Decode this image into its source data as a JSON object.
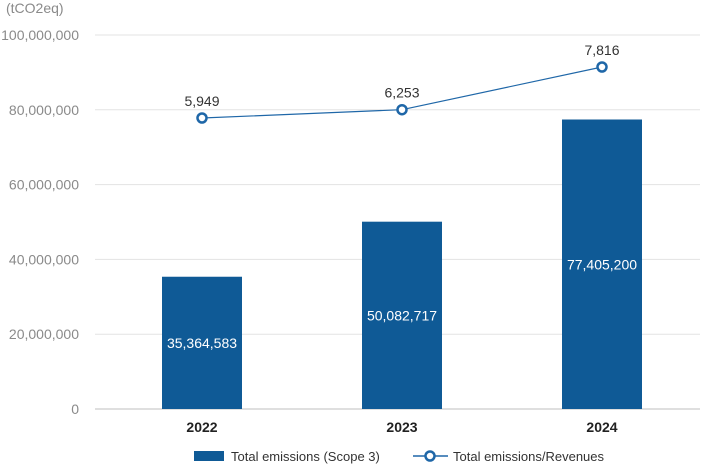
{
  "chart_data": {
    "type": "bar",
    "unit_label": "(tCO2eq)",
    "categories": [
      "2022",
      "2023",
      "2024"
    ],
    "y_ticks": [
      "0",
      "20,000,000",
      "40,000,000",
      "60,000,000",
      "80,000,000",
      "100,000,000"
    ],
    "ylim": [
      0,
      100000000
    ],
    "grid": true,
    "legend_position": "bottom",
    "series": [
      {
        "name": "Total emissions (Scope 3)",
        "type": "bar",
        "values": [
          35364583,
          50082717,
          77405200
        ],
        "labels": [
          "35,364,583",
          "50,082,717",
          "77,405,200"
        ],
        "color": "#0f5a96"
      },
      {
        "name": "Total emissions/Revenues",
        "type": "line",
        "values": [
          5949,
          6253,
          7816
        ],
        "labels": [
          "5,949",
          "6,253",
          "7,816"
        ],
        "color": "#1f67a8"
      }
    ]
  }
}
